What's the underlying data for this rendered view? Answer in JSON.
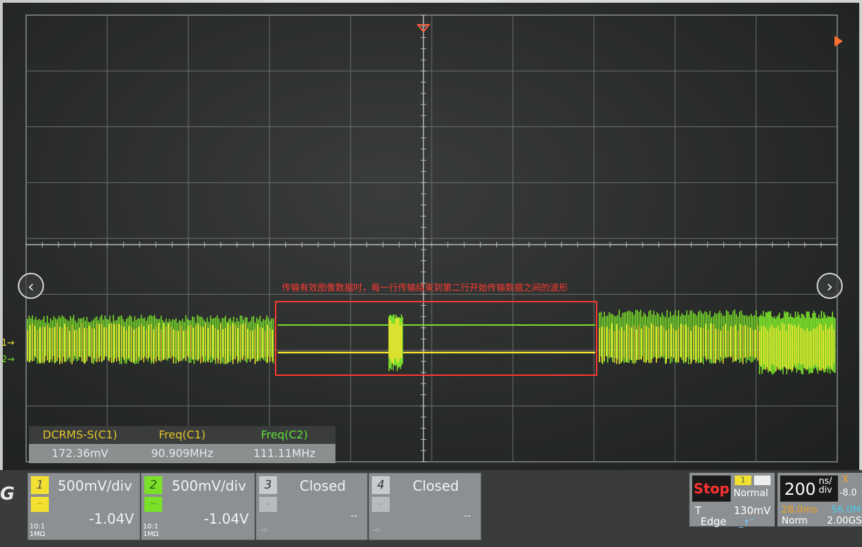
{
  "annotation": "传输有效图像数据时，每一行传输结束到第二行开始传输数据之间的波形",
  "measurements": {
    "headers": [
      {
        "label": "DCRMS-S(C1)",
        "color": "#e6c52a"
      },
      {
        "label": "Freq(C1)",
        "color": "#e6c52a"
      },
      {
        "label": "Freq(C2)",
        "color": "#5fe03a"
      }
    ],
    "values": [
      "172.36mV",
      "90.909MHz",
      "111.11MHz"
    ]
  },
  "channels": [
    {
      "number": "1",
      "scale": "500mV/div",
      "offset": "-1.04V",
      "probe": "10:1",
      "impedance": "1MΩ",
      "color": "#f2e130"
    },
    {
      "number": "2",
      "scale": "500mV/div",
      "offset": "-1.04V",
      "probe": "10:1",
      "impedance": "1MΩ",
      "color": "#7ae02a"
    },
    {
      "number": "3",
      "status": "Closed",
      "offset": "--",
      "color": "#c8cbcd"
    },
    {
      "number": "4",
      "status": "Closed",
      "offset": "--",
      "color": "#c8cbcd"
    }
  ],
  "trigger": {
    "state": "Stop",
    "source": "1",
    "mode": "Normal",
    "level_label": "T",
    "level": "130mV",
    "type": "Edge"
  },
  "timebase": {
    "value": "200",
    "unit_top": "ns/",
    "unit_bottom": "div",
    "x_label": "X",
    "x_offset": "-8.0",
    "delay": "28.0ms",
    "memory": "56.0M",
    "acq_mode": "Norm",
    "sample_rate": "2.00GS"
  },
  "colors": {
    "ch1": "#f2e130",
    "ch2": "#7ae02a",
    "annotation": "#ff3a33"
  }
}
